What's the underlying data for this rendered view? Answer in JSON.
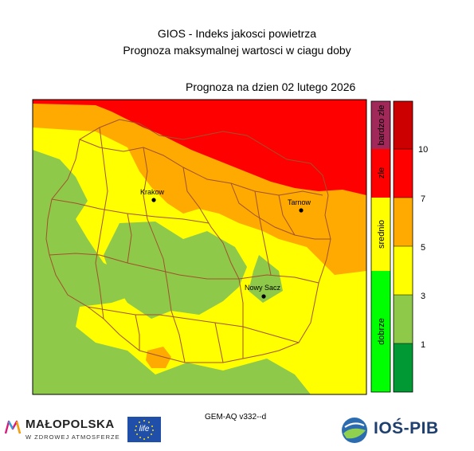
{
  "title": {
    "line1": "GIOS - Indeks jakosci powietrza",
    "line2": "Prognoza maksymalnej wartosci w ciagu doby"
  },
  "forecast_date": "Prognoza na dzien  02 lutego 2026",
  "model_label": "GEM-AQ v332--d",
  "cities": [
    {
      "name": "Krakow"
    },
    {
      "name": "Tarnow"
    },
    {
      "name": "Nowy Sacz"
    }
  ],
  "legend_categories": [
    {
      "label": "dobrze",
      "color": "#00ff00"
    },
    {
      "label": "srednio",
      "color": "#ffff00"
    },
    {
      "label": "zle",
      "color": "#ff0000"
    },
    {
      "label": "bardzo zle",
      "color": "#a0295a"
    }
  ],
  "scale_classes": [
    {
      "color": "#009933"
    },
    {
      "color": "#8fc94a"
    },
    {
      "color": "#ffff00"
    },
    {
      "color": "#ffaa00"
    },
    {
      "color": "#ff0000"
    },
    {
      "color": "#cc0000"
    }
  ],
  "scale_ticks": [
    "1",
    "3",
    "5",
    "7",
    "10"
  ],
  "logos": {
    "malopolska": {
      "title": "MAŁOPOLSKA",
      "subtitle": "W ZDROWEJ ATMOSFERZE"
    },
    "eu_life": {
      "text": "life"
    },
    "ios_pib": {
      "text": "IOŚ-PIB"
    }
  },
  "colors": {
    "green": "#8fc94a",
    "yellow": "#ffff00",
    "orange": "#ffaa00",
    "red": "#ff0000",
    "border": "#a0522d"
  }
}
